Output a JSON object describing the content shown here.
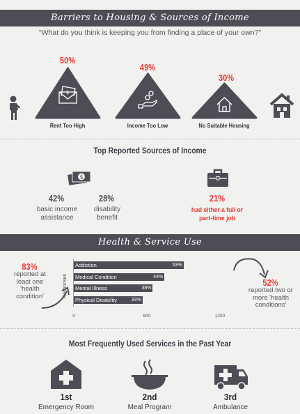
{
  "colors": {
    "dark": "#4d4d55",
    "accent": "#e63a31",
    "background": "#f1f1f0"
  },
  "barriers": {
    "title": "Barriers to Housing & Sources of Income",
    "question": "\"What do you think is keeping you from finding a place of your own?\"",
    "items": [
      {
        "percent": "50%",
        "label": "Rent Too High",
        "icon": "money-envelope-icon"
      },
      {
        "percent": "49%",
        "label": "Income Too Low",
        "icon": "coin-hand-icon"
      },
      {
        "percent": "30%",
        "label": "No Suitable Housing",
        "icon": "house-icon"
      }
    ]
  },
  "income": {
    "title": "Top Reported Sources of Income",
    "items": [
      {
        "percent": "42%",
        "label": "basic income assistance"
      },
      {
        "percent": "28%",
        "label": "disability benefit"
      },
      {
        "percent": "21%",
        "label": "had either a full or part-time job"
      }
    ]
  },
  "health": {
    "title": "Health & Service Use",
    "left_percent": "83%",
    "left_text": "reported at least one 'health condition'",
    "right_percent": "52%",
    "right_text": "reported two or more 'health conditions'"
  },
  "services": {
    "title": "Most Frequently Used Services in the Past Year",
    "items": [
      {
        "rank": "1st",
        "name": "Emergency Room",
        "icon": "hospital-icon"
      },
      {
        "rank": "2nd",
        "name": "Meal Program",
        "icon": "food-bowl-icon"
      },
      {
        "rank": "3rd",
        "name": "Ambulance",
        "icon": "ambulance-icon"
      }
    ]
  },
  "chart_data": {
    "type": "bar",
    "orientation": "horizontal",
    "ylabel": "Responses",
    "categories": [
      "Addiction",
      "Medical Condition",
      "Mental Illness",
      "Physical Disability"
    ],
    "series": [
      {
        "values": [
          53,
          44,
          38,
          33
        ],
        "value_labels": [
          "53%",
          "44%",
          "38%",
          "33%"
        ]
      }
    ],
    "xticks": [
      0,
      600,
      1200
    ],
    "xlim": [
      0,
      1200
    ],
    "bar_fractions_of_axis": [
      0.75,
      0.62,
      0.54,
      0.47
    ],
    "grid": false
  }
}
